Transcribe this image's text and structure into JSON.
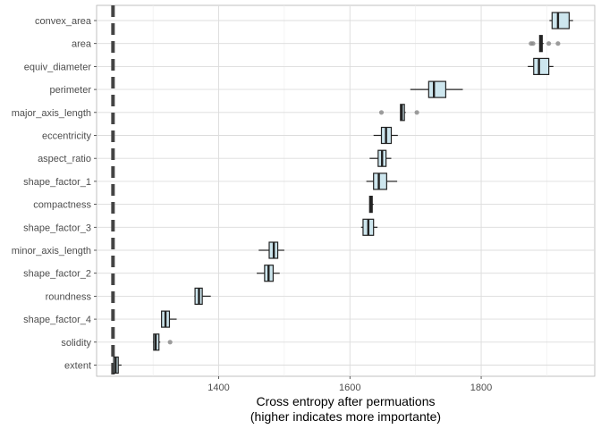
{
  "chart_data": {
    "type": "boxplot",
    "xlabel": "Cross entropy after permuations",
    "xlabel_sub": "(higher indicates more importante)",
    "xlim": [
      1214,
      1973
    ],
    "xticks": [
      1400,
      1600,
      1800
    ],
    "reference_line": {
      "x": 1239,
      "style": "dashed"
    },
    "grid": true,
    "box_fill": "#cde6ee",
    "box_stroke": "#222222",
    "outlier_color": "#8c8c8c",
    "reference_color": "#444444",
    "categories": [
      {
        "name": "convex_area",
        "whisker_low": 1904,
        "q1": 1908,
        "median": 1917,
        "q3": 1934,
        "whisker_high": 1940,
        "outliers": []
      },
      {
        "name": "area",
        "whisker_low": 1889,
        "q1": 1889,
        "median": 1891,
        "q3": 1893,
        "whisker_high": 1895,
        "outliers": [
          1876,
          1879,
          1903,
          1917
        ]
      },
      {
        "name": "equiv_diameter",
        "whisker_low": 1871,
        "q1": 1880,
        "median": 1888,
        "q3": 1903,
        "whisker_high": 1910,
        "outliers": []
      },
      {
        "name": "perimeter",
        "whisker_low": 1692,
        "q1": 1720,
        "median": 1728,
        "q3": 1746,
        "whisker_high": 1772,
        "outliers": []
      },
      {
        "name": "major_axis_length",
        "whisker_low": 1677,
        "q1": 1677,
        "median": 1679,
        "q3": 1683,
        "whisker_high": 1685,
        "outliers": [
          1648,
          1702
        ]
      },
      {
        "name": "eccentricity",
        "whisker_low": 1636,
        "q1": 1648,
        "median": 1655,
        "q3": 1663,
        "whisker_high": 1673,
        "outliers": []
      },
      {
        "name": "aspect_ratio",
        "whisker_low": 1630,
        "q1": 1643,
        "median": 1649,
        "q3": 1655,
        "whisker_high": 1663,
        "outliers": []
      },
      {
        "name": "shape_factor_1",
        "whisker_low": 1625,
        "q1": 1636,
        "median": 1644,
        "q3": 1656,
        "whisker_high": 1672,
        "outliers": []
      },
      {
        "name": "compactness",
        "whisker_low": 1630,
        "q1": 1630,
        "median": 1632,
        "q3": 1634,
        "whisker_high": 1636,
        "outliers": []
      },
      {
        "name": "shape_factor_3",
        "whisker_low": 1617,
        "q1": 1620,
        "median": 1628,
        "q3": 1636,
        "whisker_high": 1642,
        "outliers": []
      },
      {
        "name": "minor_axis_length",
        "whisker_low": 1461,
        "q1": 1477,
        "median": 1484,
        "q3": 1490,
        "whisker_high": 1500,
        "outliers": []
      },
      {
        "name": "shape_factor_2",
        "whisker_low": 1458,
        "q1": 1470,
        "median": 1476,
        "q3": 1483,
        "whisker_high": 1493,
        "outliers": []
      },
      {
        "name": "roundness",
        "whisker_low": 1363,
        "q1": 1364,
        "median": 1370,
        "q3": 1375,
        "whisker_high": 1388,
        "outliers": []
      },
      {
        "name": "shape_factor_4",
        "whisker_low": 1313,
        "q1": 1313,
        "median": 1319,
        "q3": 1325,
        "whisker_high": 1336,
        "outliers": []
      },
      {
        "name": "solidity",
        "whisker_low": 1300,
        "q1": 1301,
        "median": 1304,
        "q3": 1309,
        "whisker_high": 1311,
        "outliers": [
          1326
        ]
      },
      {
        "name": "extent",
        "whisker_low": 1240,
        "q1": 1240,
        "median": 1243,
        "q3": 1247,
        "whisker_high": 1252,
        "outliers": []
      }
    ]
  }
}
